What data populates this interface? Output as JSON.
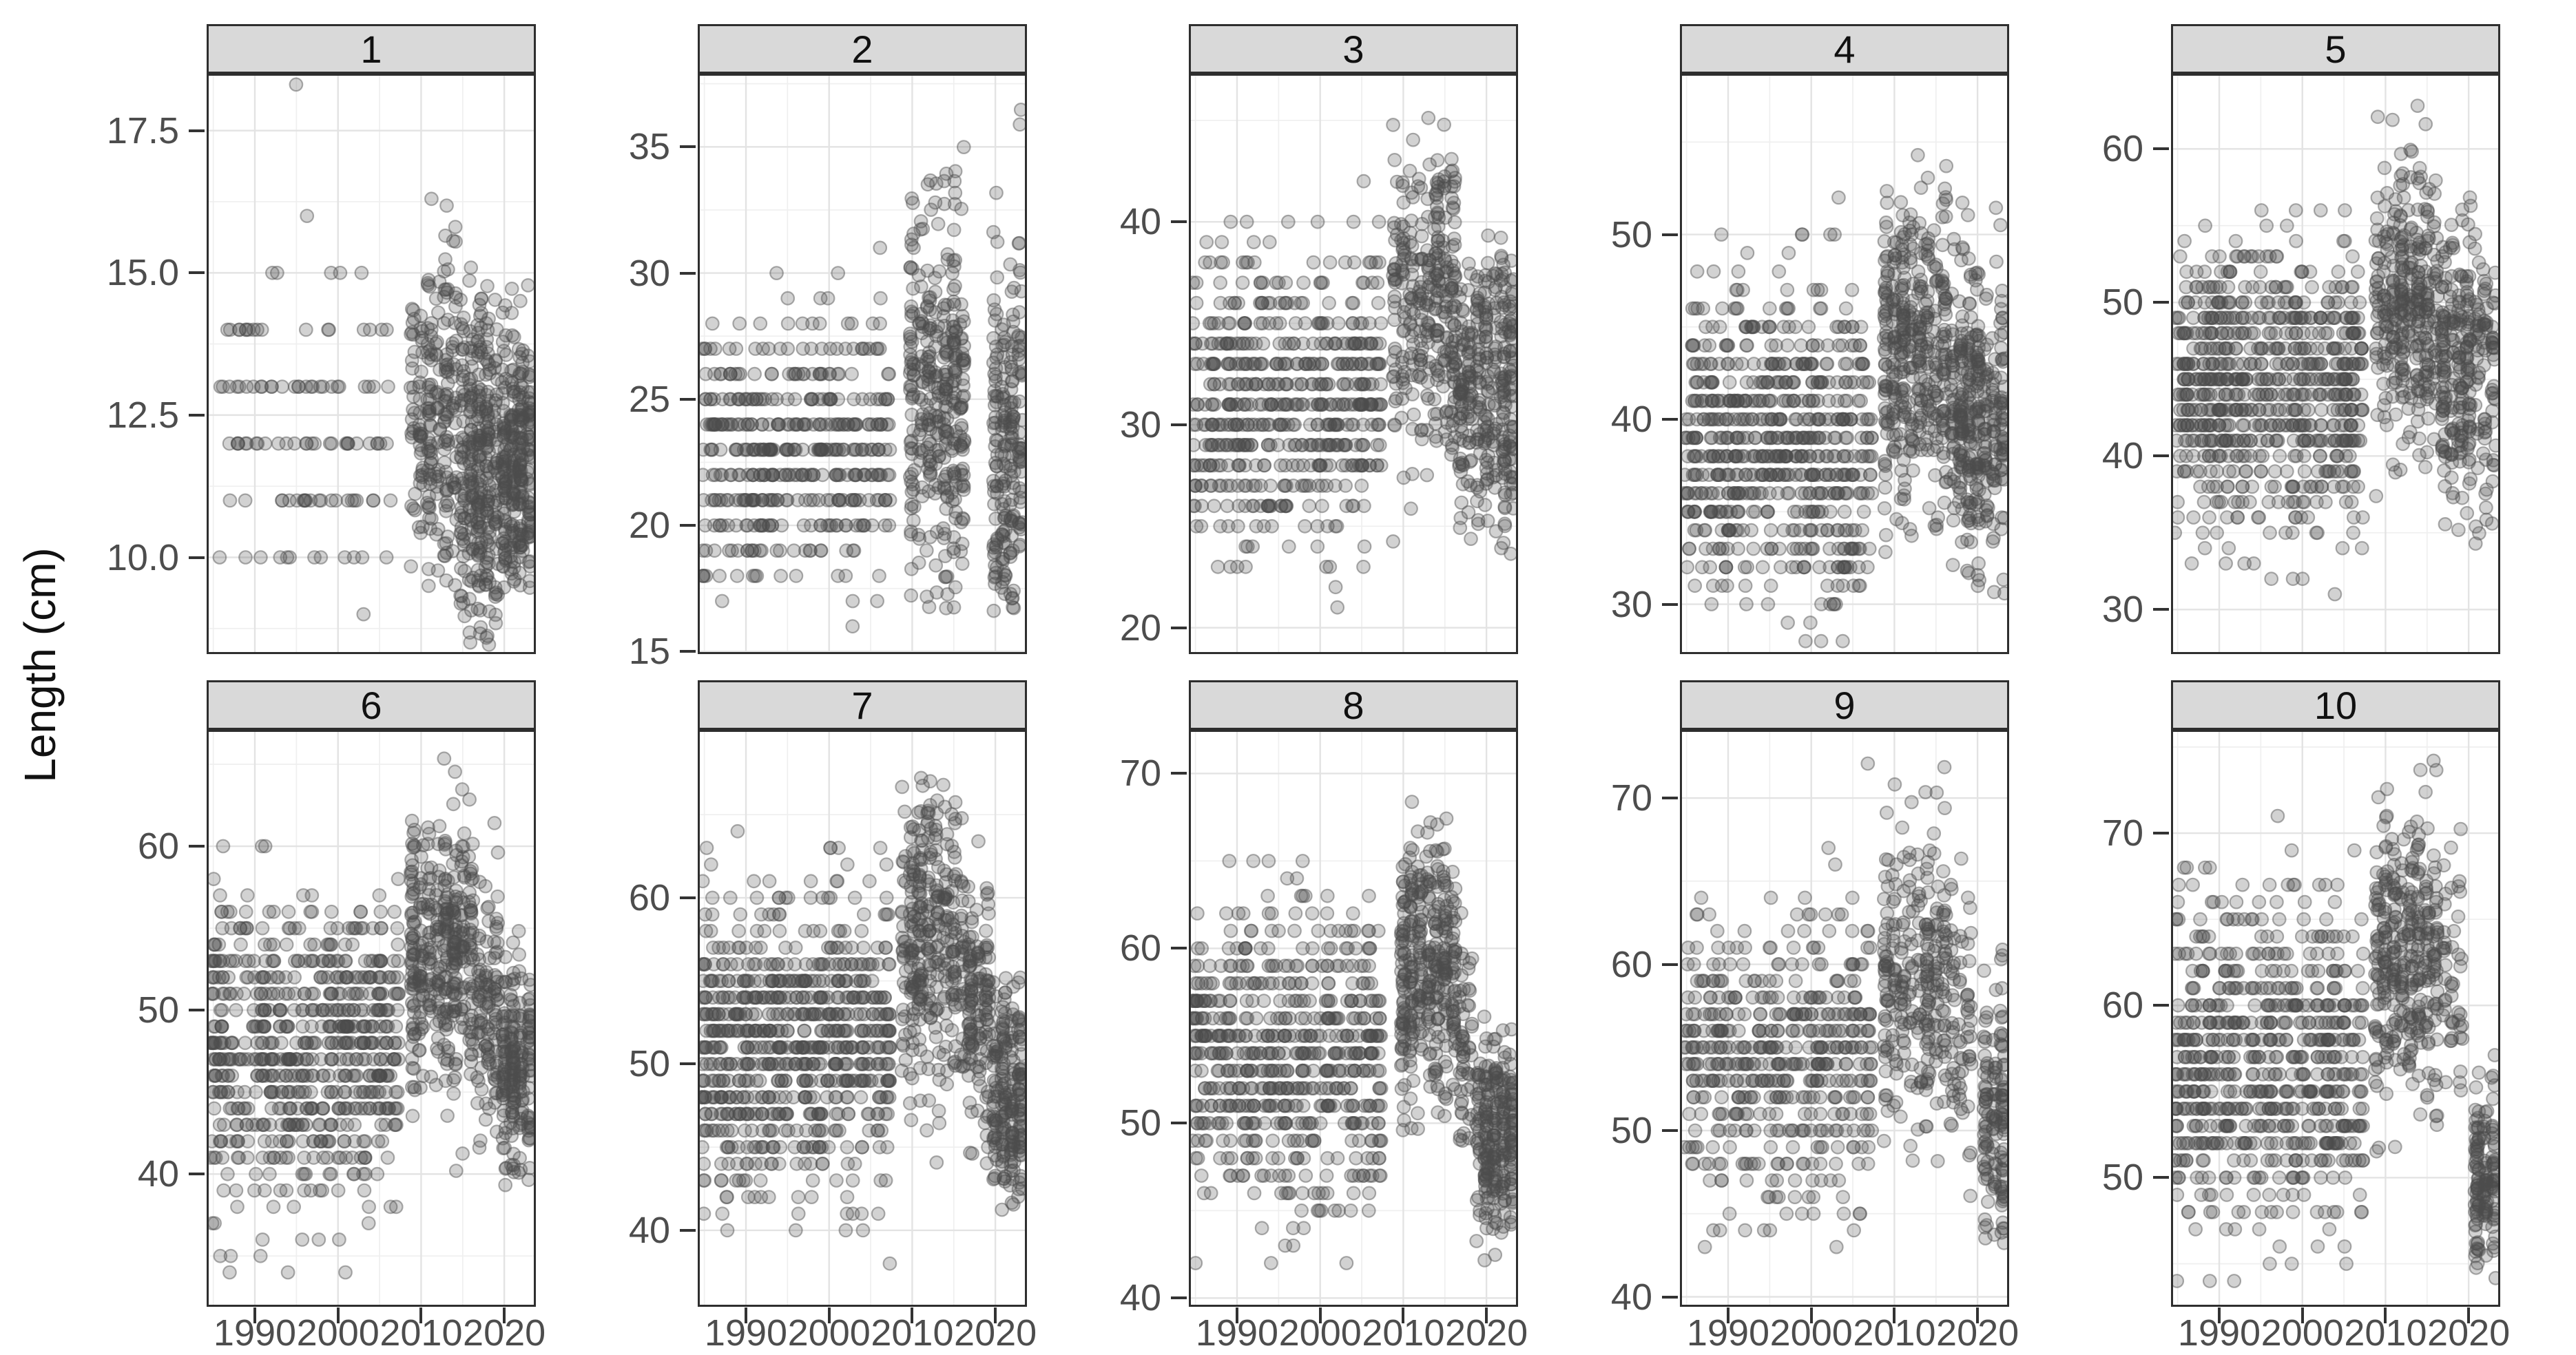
{
  "chart_data": {
    "type": "scatter",
    "title": "",
    "xlabel": "",
    "ylabel": "Length (cm)",
    "legend": "none",
    "grid": "on",
    "x_ticks": [
      1990,
      2000,
      2010,
      2020
    ],
    "x_domain": [
      1984.2,
      2023.8
    ],
    "style": {
      "point_color": "#4d4d4d",
      "point_fill_alpha": 0.25,
      "point_stroke_alpha": 0.45,
      "strip_bg": "#d9d9d9",
      "strip_border": "#2e2e2e",
      "panel_border": "#2e2e2e",
      "grid_major": "#e3e3e3",
      "grid_minor": "#efefef",
      "tick_color": "#333333",
      "tick_label_color": "#4d4d4d",
      "title_color": "#111111"
    },
    "facets": [
      {
        "label": "1",
        "ylim": [
          8.3,
          18.5
        ],
        "yticks": [
          10,
          12.5,
          15,
          17.5
        ],
        "decimals": 1,
        "groups": [
          {
            "from": 1986,
            "to": 2006,
            "per_year": 6,
            "mean": 12.4,
            "sd": 1.35,
            "min": 9,
            "max": 16,
            "integer": true
          },
          {
            "from": 1995,
            "to": 1995,
            "per_year": 1,
            "mean": 18.3,
            "sd": 0.05,
            "min": 18,
            "max": 18.4,
            "integer": false
          },
          {
            "from": 2009,
            "to": 2014,
            "per_year": 38,
            "mean": 12.5,
            "sd": 1.5,
            "min": 9.4,
            "max": 16.4,
            "integer": false
          },
          {
            "from": 2015,
            "to": 2019,
            "per_year": 70,
            "mean": 11.6,
            "sd": 1.5,
            "min": 8.4,
            "max": 15.2,
            "integer": false
          },
          {
            "from": 2020,
            "to": 2023,
            "per_year": 62,
            "mean": 11.4,
            "sd": 1.3,
            "min": 9.4,
            "max": 15.0,
            "integer": false
          }
        ]
      },
      {
        "label": "2",
        "ylim": [
          14.9,
          37.9
        ],
        "yticks": [
          15,
          20,
          25,
          30,
          35
        ],
        "decimals": 0,
        "groups": [
          {
            "from": 1985,
            "to": 2007,
            "per_year": 20,
            "mean": 22.8,
            "sd": 2.7,
            "min": 16,
            "max": 31,
            "integer": true
          },
          {
            "from": 2010,
            "to": 2016,
            "per_year": 48,
            "mean": 25.0,
            "sd": 4.0,
            "min": 16.5,
            "max": 35,
            "integer": false
          },
          {
            "from": 2020,
            "to": 2023,
            "per_year": 55,
            "mean": 23.2,
            "sd": 4.1,
            "min": 16.5,
            "max": 35.5,
            "integer": false
          },
          {
            "from": 2023,
            "to": 2023,
            "per_year": 2,
            "mean": 36.5,
            "sd": 0.6,
            "min": 35.8,
            "max": 37.2,
            "integer": false
          }
        ]
      },
      {
        "label": "3",
        "ylim": [
          18.7,
          47.3
        ],
        "yticks": [
          20,
          30,
          40
        ],
        "decimals": 0,
        "groups": [
          {
            "from": 1985,
            "to": 2007,
            "per_year": 26,
            "mean": 31.3,
            "sd": 3.6,
            "min": 20,
            "max": 45,
            "integer": true
          },
          {
            "from": 2009,
            "to": 2016,
            "per_year": 48,
            "mean": 36.0,
            "sd": 3.8,
            "min": 24,
            "max": 46.5,
            "integer": false
          },
          {
            "from": 2017,
            "to": 2023,
            "per_year": 48,
            "mean": 31.8,
            "sd": 3.4,
            "min": 23.5,
            "max": 43.5,
            "integer": false
          }
        ]
      },
      {
        "label": "4",
        "ylim": [
          27.3,
          58.7
        ],
        "yticks": [
          30,
          40,
          50
        ],
        "decimals": 0,
        "groups": [
          {
            "from": 1985,
            "to": 2007,
            "per_year": 30,
            "mean": 38.6,
            "sd": 4.2,
            "min": 28,
            "max": 55,
            "integer": true
          },
          {
            "from": 2009,
            "to": 2016,
            "per_year": 48,
            "mean": 43.6,
            "sd": 4.2,
            "min": 32,
            "max": 57.5,
            "integer": false
          },
          {
            "from": 2017,
            "to": 2023,
            "per_year": 48,
            "mean": 40.3,
            "sd": 4.0,
            "min": 30,
            "max": 52.5,
            "integer": false
          }
        ]
      },
      {
        "label": "5",
        "ylim": [
          27.1,
          64.9
        ],
        "yticks": [
          30,
          40,
          50,
          60
        ],
        "decimals": 0,
        "groups": [
          {
            "from": 1985,
            "to": 2007,
            "per_year": 32,
            "mean": 44.6,
            "sd": 4.6,
            "min": 29,
            "max": 60,
            "integer": true
          },
          {
            "from": 2009,
            "to": 2016,
            "per_year": 48,
            "mean": 50.0,
            "sd": 4.8,
            "min": 36,
            "max": 63.5,
            "integer": false
          },
          {
            "from": 2017,
            "to": 2020,
            "per_year": 46,
            "mean": 46.0,
            "sd": 4.4,
            "min": 33,
            "max": 58,
            "integer": false
          },
          {
            "from": 2021,
            "to": 2023,
            "per_year": 22,
            "mean": 45.0,
            "sd": 4.8,
            "min": 33,
            "max": 57,
            "integer": false
          }
        ]
      },
      {
        "label": "6",
        "ylim": [
          31.9,
          67.1
        ],
        "yticks": [
          40,
          50,
          60
        ],
        "decimals": 0,
        "groups": [
          {
            "from": 1985,
            "to": 2007,
            "per_year": 32,
            "mean": 47.6,
            "sd": 4.6,
            "min": 33.5,
            "max": 62,
            "integer": true
          },
          {
            "from": 2009,
            "to": 2016,
            "per_year": 48,
            "mean": 53.6,
            "sd": 4.4,
            "min": 40,
            "max": 65.5,
            "integer": false
          },
          {
            "from": 2017,
            "to": 2019,
            "per_year": 46,
            "mean": 50.5,
            "sd": 4.0,
            "min": 41,
            "max": 63,
            "integer": false
          },
          {
            "from": 2020,
            "to": 2023,
            "per_year": 52,
            "mean": 46.3,
            "sd": 3.2,
            "min": 39,
            "max": 55,
            "integer": false
          }
        ]
      },
      {
        "label": "7",
        "ylim": [
          35.4,
          70.1
        ],
        "yticks": [
          40,
          50,
          60
        ],
        "decimals": 0,
        "groups": [
          {
            "from": 1985,
            "to": 2007,
            "per_year": 32,
            "mean": 51.2,
            "sd": 4.4,
            "min": 38,
            "max": 64,
            "integer": true
          },
          {
            "from": 2009,
            "to": 2016,
            "per_year": 48,
            "mean": 57.2,
            "sd": 4.4,
            "min": 44,
            "max": 68.5,
            "integer": false
          },
          {
            "from": 2017,
            "to": 2019,
            "per_year": 42,
            "mean": 53.5,
            "sd": 4.0,
            "min": 43,
            "max": 64,
            "integer": false
          },
          {
            "from": 2020,
            "to": 2023,
            "per_year": 52,
            "mean": 48.3,
            "sd": 3.2,
            "min": 41,
            "max": 58,
            "integer": false
          }
        ]
      },
      {
        "label": "8",
        "ylim": [
          39.5,
          72.5
        ],
        "yticks": [
          40,
          50,
          60,
          70
        ],
        "decimals": 0,
        "groups": [
          {
            "from": 1985,
            "to": 2007,
            "per_year": 28,
            "mean": 53.6,
            "sd": 4.4,
            "min": 41,
            "max": 66,
            "integer": true
          },
          {
            "from": 2010,
            "to": 2016,
            "per_year": 48,
            "mean": 59.0,
            "sd": 4.0,
            "min": 47,
            "max": 71,
            "integer": false
          },
          {
            "from": 2017,
            "to": 2018,
            "per_year": 30,
            "mean": 54.5,
            "sd": 3.6,
            "min": 45,
            "max": 64,
            "integer": false
          },
          {
            "from": 2019,
            "to": 2023,
            "per_year": 46,
            "mean": 49.0,
            "sd": 3.4,
            "min": 42,
            "max": 58.5,
            "integer": false
          }
        ]
      },
      {
        "label": "9",
        "ylim": [
          39.4,
          74.1
        ],
        "yticks": [
          40,
          50,
          60,
          70
        ],
        "decimals": 0,
        "groups": [
          {
            "from": 1985,
            "to": 2007,
            "per_year": 24,
            "mean": 54.0,
            "sd": 4.6,
            "min": 41,
            "max": 68,
            "integer": true
          },
          {
            "from": 2007,
            "to": 2007,
            "per_year": 1,
            "mean": 72.3,
            "sd": 0.1,
            "min": 72,
            "max": 72.6,
            "integer": false
          },
          {
            "from": 2009,
            "to": 2016,
            "per_year": 38,
            "mean": 59.0,
            "sd": 4.4,
            "min": 47,
            "max": 72,
            "integer": false
          },
          {
            "from": 2016,
            "to": 2016,
            "per_year": 1,
            "mean": 71.8,
            "sd": 0.1,
            "min": 71.5,
            "max": 72.1,
            "integer": false
          },
          {
            "from": 2017,
            "to": 2019,
            "per_year": 22,
            "mean": 57.0,
            "sd": 4.5,
            "min": 46,
            "max": 70,
            "integer": false
          },
          {
            "from": 2021,
            "to": 2023,
            "per_year": 50,
            "mean": 50.0,
            "sd": 4.2,
            "min": 43,
            "max": 68,
            "integer": false
          }
        ]
      },
      {
        "label": "10",
        "ylim": [
          42.5,
          76
        ],
        "yticks": [
          50,
          60,
          70
        ],
        "decimals": 0,
        "groups": [
          {
            "from": 1985,
            "to": 2007,
            "per_year": 28,
            "mean": 56.6,
            "sd": 4.6,
            "min": 44,
            "max": 71,
            "integer": true
          },
          {
            "from": 2009,
            "to": 2016,
            "per_year": 40,
            "mean": 62.5,
            "sd": 4.2,
            "min": 51,
            "max": 74.5,
            "integer": false
          },
          {
            "from": 2016,
            "to": 2016,
            "per_year": 2,
            "mean": 73.8,
            "sd": 0.5,
            "min": 73,
            "max": 74.4,
            "integer": false
          },
          {
            "from": 2017,
            "to": 2019,
            "per_year": 18,
            "mean": 61.5,
            "sd": 4.0,
            "min": 51,
            "max": 71,
            "integer": false
          },
          {
            "from": 2021,
            "to": 2023,
            "per_year": 46,
            "mean": 49.5,
            "sd": 3.0,
            "min": 43.5,
            "max": 57.5,
            "integer": false
          }
        ]
      }
    ]
  }
}
